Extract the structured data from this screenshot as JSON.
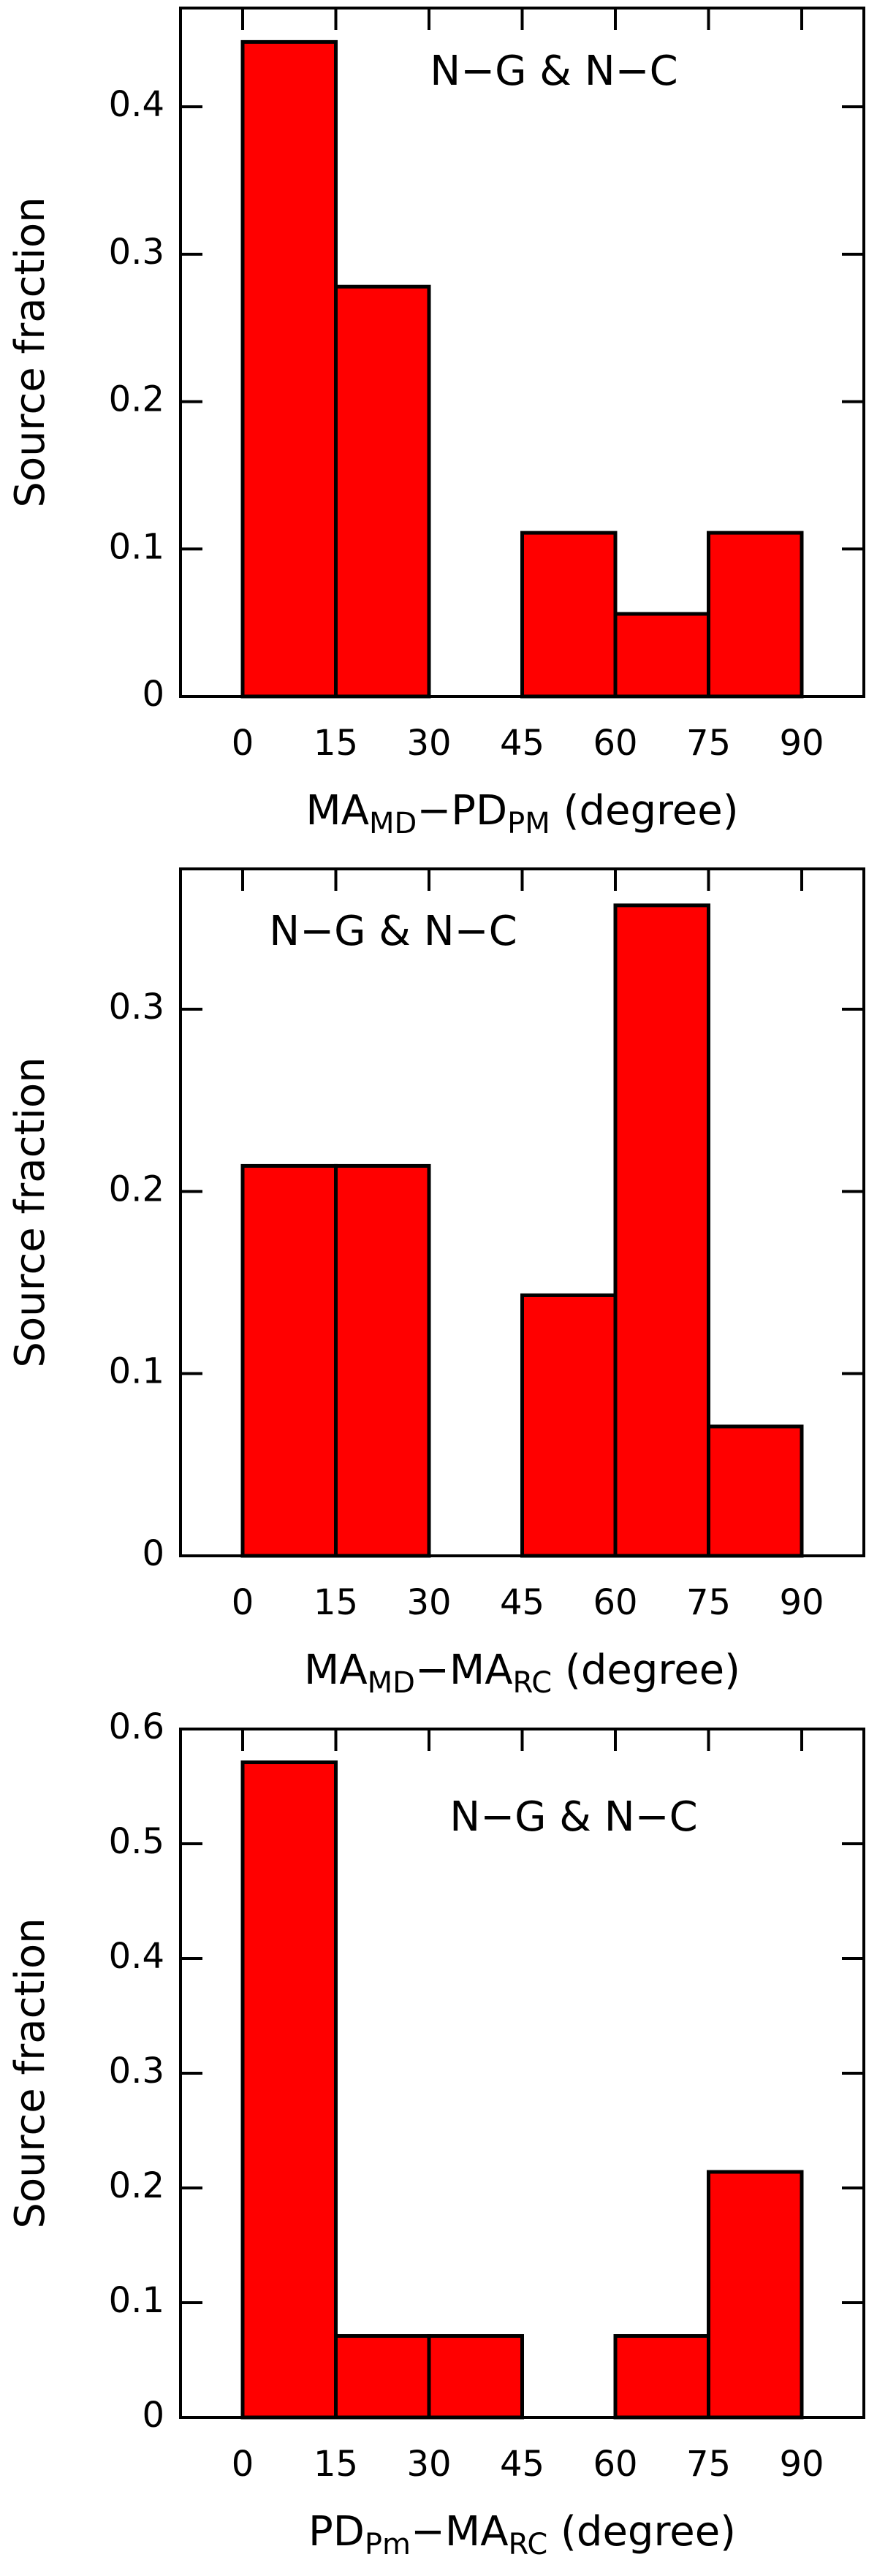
{
  "chart_data": [
    {
      "type": "histogram",
      "annotation": "N−G & N−C",
      "ylabel": "Source fraction",
      "xlabel": [
        {
          "text": "MA"
        },
        {
          "text": "MD",
          "sub": true
        },
        {
          "text": "−PD"
        },
        {
          "text": "PM",
          "sub": true
        },
        {
          "text": " (degree)"
        }
      ],
      "bins": [
        0,
        15,
        30,
        45,
        60,
        75,
        90,
        105
      ],
      "values": [
        0.444,
        0.278,
        0,
        0.111,
        0.056,
        0.111,
        0
      ],
      "color": "#ff0000",
      "xlim": [
        -10,
        100
      ],
      "xticks": [
        0,
        15,
        30,
        45,
        60,
        75,
        90
      ],
      "ylim": [
        0,
        0.467
      ],
      "yticks": [
        0,
        0.1,
        0.2,
        0.3,
        0.4
      ]
    },
    {
      "type": "histogram",
      "annotation": "N−G & N−C",
      "ylabel": "Source fraction",
      "xlabel": [
        {
          "text": "MA"
        },
        {
          "text": "MD",
          "sub": true
        },
        {
          "text": "−MA"
        },
        {
          "text": "RC",
          "sub": true
        },
        {
          "text": " (degree)"
        }
      ],
      "bins": [
        0,
        15,
        30,
        45,
        60,
        75,
        90,
        105
      ],
      "values": [
        0.214,
        0.214,
        0,
        0.143,
        0.357,
        0.071,
        0
      ],
      "color": "#ff0000",
      "xlim": [
        -10,
        100
      ],
      "xticks": [
        0,
        15,
        30,
        45,
        60,
        75,
        90
      ],
      "ylim": [
        0,
        0.377
      ],
      "yticks": [
        0,
        0.1,
        0.2,
        0.3
      ]
    },
    {
      "type": "histogram",
      "annotation": "N−G & N−C",
      "ylabel": "Source fraction",
      "xlabel": [
        {
          "text": "PD"
        },
        {
          "text": "Pm",
          "sub": true
        },
        {
          "text": "−MA"
        },
        {
          "text": "RC",
          "sub": true
        },
        {
          "text": " (degree)"
        }
      ],
      "bins": [
        0,
        15,
        30,
        45,
        60,
        75,
        90,
        105
      ],
      "values": [
        0.571,
        0.071,
        0.071,
        0,
        0.071,
        0.214,
        0
      ],
      "color": "#ff0000",
      "xlim": [
        -10,
        100
      ],
      "xticks": [
        0,
        15,
        30,
        45,
        60,
        75,
        90
      ],
      "ylim": [
        0,
        0.6
      ],
      "yticks": [
        0,
        0.1,
        0.2,
        0.3,
        0.4,
        0.5,
        0.6
      ]
    }
  ]
}
